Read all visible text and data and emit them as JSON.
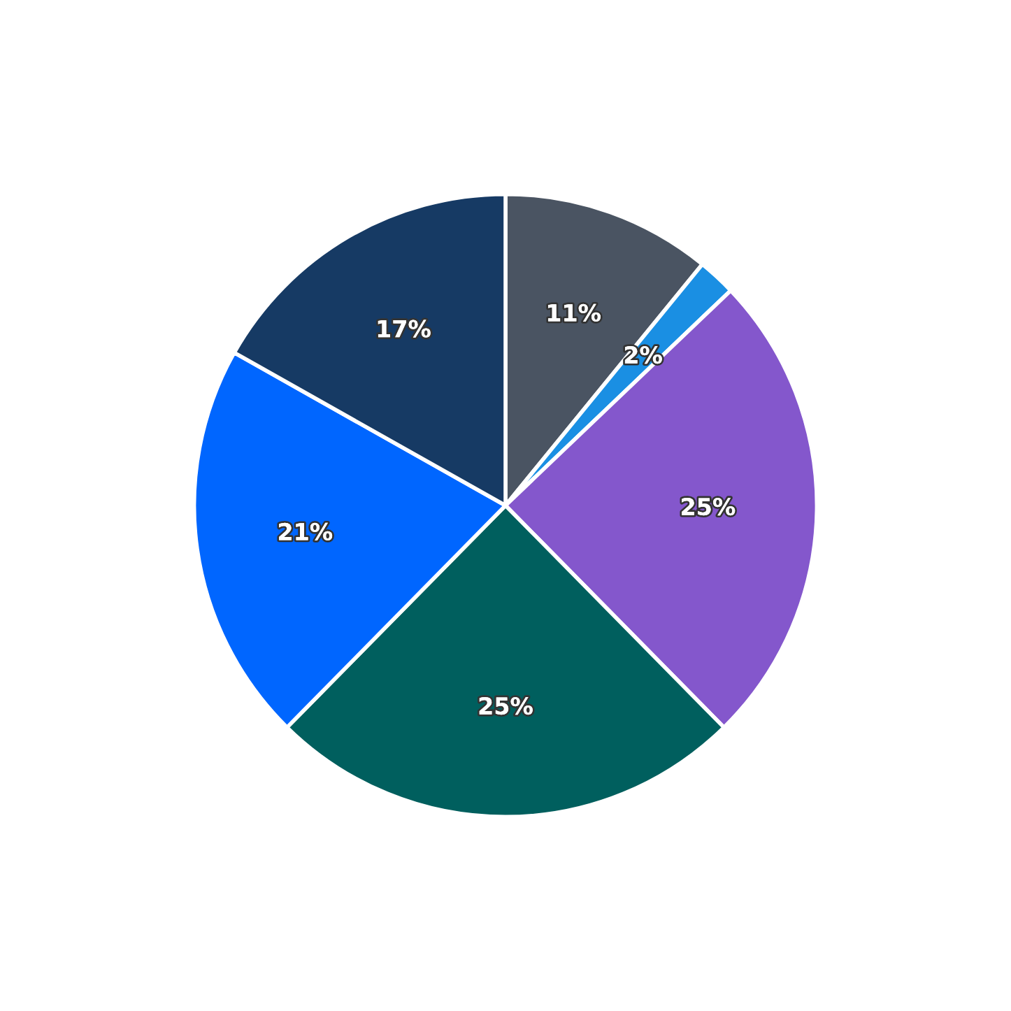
{
  "chart_data": {
    "type": "pie",
    "categories": [
      null,
      null,
      null,
      null,
      null,
      null
    ],
    "values": [
      11,
      2,
      25,
      25,
      21,
      17
    ],
    "colors": [
      "#4a5462",
      "#1a8fe3",
      "#8457cc",
      "#005f5e",
      "#0066ff",
      "#163a64"
    ],
    "value_labels": [
      "11%",
      "2%",
      "25%",
      "25%",
      "21%",
      "17%"
    ]
  }
}
